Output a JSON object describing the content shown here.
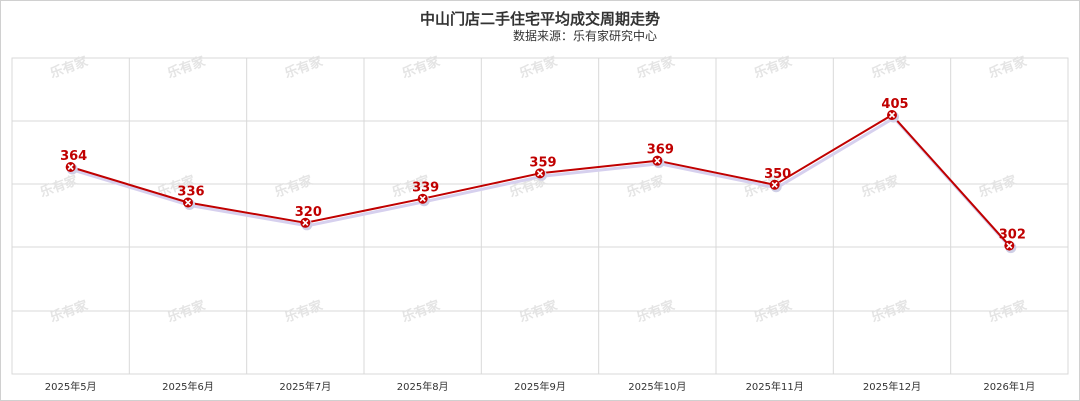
{
  "title": "中山门店二手住宅平均成交周期走势",
  "subtitle": "数据来源：乐有家研究中心",
  "watermark": "乐有家",
  "colors": {
    "line": "#c00000",
    "grid": "#d9d9d9",
    "text": "#333333"
  },
  "chart_data": {
    "type": "line",
    "categories": [
      "2025年5月",
      "2025年6月",
      "2025年7月",
      "2025年8月",
      "2025年9月",
      "2025年10月",
      "2025年11月",
      "2025年12月",
      "2026年1月"
    ],
    "values": [
      364,
      336,
      320,
      339,
      359,
      369,
      350,
      405,
      302
    ],
    "data_labels": true,
    "grid": true
  }
}
